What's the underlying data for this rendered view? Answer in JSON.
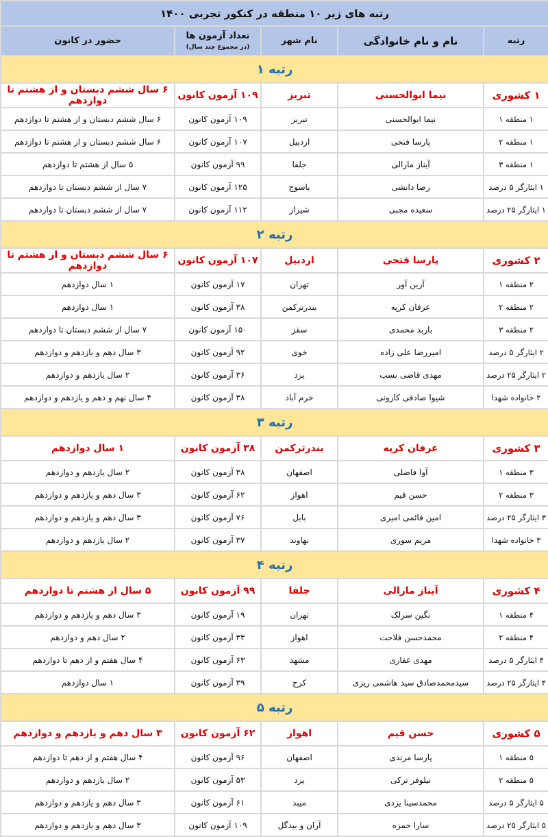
{
  "title": "رتبه های زیر ۱۰ منطقه در کنکور تجربی ۱۴۰۰",
  "headers": {
    "rank": "رتبه",
    "name": "نام و نام خانوادگی",
    "city": "نام شهر",
    "exams": "تعداد آزمون ها",
    "exams_sub": "(در مجموع چند سال)",
    "attendance": "حضور در کانون"
  },
  "colors": {
    "header_bg": "#b4c6e7",
    "section_bg": "#ffe699",
    "section_text": "#1f6fb4",
    "highlight": "#e00000"
  },
  "sections": [
    {
      "title": "رتبه ۱",
      "rows": [
        [
          "۱ کشوری",
          "نیما ابوالحسنی",
          "تبریز",
          "۱۰۹ آزمون کانون",
          "۶ سال ششم دبستان و از هشتم تا دوازدهم"
        ],
        [
          "۱ منطقه ۱",
          "نیما ابوالحسنی",
          "تبریز",
          "۱۰۹ آزمون کانون",
          "۶ سال ششم دبستان و از هشتم تا دوازدهم"
        ],
        [
          "۱ منطقه ۲",
          "پارسا فتحی",
          "اردبیل",
          "۱۰۷ آزمون کانون",
          "۶ سال ششم دبستان و از هشتم تا دوازدهم"
        ],
        [
          "۱ منطقه ۳",
          "آیناز مارالی",
          "جلفا",
          "۹۹ آزمون کانون",
          "۵ سال از هشتم تا دوازدهم"
        ],
        [
          "۱ ایثارگر ۵ درصد",
          "رضا دانشی",
          "یاسوج",
          "۱۲۵ آزمون کانون",
          "۷ سال از ششم دبستان تا دوازدهم"
        ],
        [
          "۱ ایثارگر ۲۵ درصد",
          "سعیده مجبی",
          "شیراز",
          "۱۱۲ آزمون کانون",
          "۷ سال از ششم دبستان تا دوازدهم"
        ]
      ]
    },
    {
      "title": "رتبه ۲",
      "rows": [
        [
          "۲ کشوری",
          "پارسا فتحی",
          "اردبیل",
          "۱۰۷ آزمون کانون",
          "۶ سال ششم دبستان و از هشتم تا دوازدهم"
        ],
        [
          "۲ منطقه ۱",
          "آرین آور",
          "تهران",
          "۱۷ آزمون کانون",
          "۱ سال دوازدهم"
        ],
        [
          "۲ منطقه ۲",
          "عرفان کرپه",
          "بندرترکمن",
          "۳۸ آزمون کانون",
          "۱ سال دوازدهم"
        ],
        [
          "۲ منطقه ۳",
          "باربد محمدی",
          "سقز",
          "۱۵۰ آزمون کانون",
          "۷ سال از ششم دبستان تا دوازدهم"
        ],
        [
          "۲ ایثارگر ۵ درصد",
          "امیررضا علی زاده",
          "خوی",
          "۹۲ آزمون کانون",
          "۳ سال دهم و یازدهم و دوازدهم"
        ],
        [
          "۲ ایثارگر ۲۵ درصد",
          "مهدی قاضی نسب",
          "یزد",
          "۳۶ آزمون کانون",
          "۲ سال یازدهم و دوازدهم"
        ],
        [
          "۲ خانواده شهدا",
          "شیوا صادقی کارونی",
          "خرم آباد",
          "۳۸ آزمون کانون",
          "۴ سال نهم و دهم و یازدهم و دوازدهم"
        ]
      ]
    },
    {
      "title": "رتبه ۳",
      "rows": [
        [
          "۳ کشوری",
          "عرفان کرپه",
          "بندرترکمن",
          "۳۸ آزمون کانون",
          "۱ سال دوازدهم"
        ],
        [
          "۳ منطقه ۱",
          "آوا فاضلی",
          "اصفهان",
          "۳۸ آزمون کانون",
          "۲ سال یازدهم و دوازدهم"
        ],
        [
          "۳ منطقه ۲",
          "حسن قیم",
          "اهواز",
          "۶۲ آزمون کانون",
          "۳ سال دهم و یازدهم و دوازدهم"
        ],
        [
          "۳ ایثارگر ۲۵ درصد",
          "امین قائمی امیری",
          "بابل",
          "۷۶ آزمون کانون",
          "۳ سال دهم و یازدهم و دوازدهم"
        ],
        [
          "۳ خانواده شهدا",
          "مریم سوری",
          "نهاوند",
          "۳۷ آزمون کانون",
          "۲ سال یازدهم و دوازدهم"
        ]
      ]
    },
    {
      "title": "رتبه ۴",
      "rows": [
        [
          "۴ کشوری",
          "آیناز مارالی",
          "جلفا",
          "۹۹ آزمون کانون",
          "۵ سال از هشتم تا دوازدهم"
        ],
        [
          "۴ منطقه ۱",
          "نگین سرلک",
          "تهران",
          "۱۹ آزمون کانون",
          "۳ سال دهم و یازدهم و دوازدهم"
        ],
        [
          "۴ منطقه ۲",
          "محمدحسن فلاحت",
          "اهواز",
          "۳۳ آزمون کانون",
          "۲ سال دهم و دوازدهم"
        ],
        [
          "۴ ایثارگر ۵ درصد",
          "مهدی غفاری",
          "مشهد",
          "۶۳ آزمون کانون",
          "۴ سال هفتم و از دهم تا دوازدهم"
        ],
        [
          "۴ ایثارگر ۲۵ درصد",
          "سیدمحمدصادق سید هاشمی ریزی",
          "کرج",
          "۳۹ آزمون کانون",
          "۱ سال دوازدهم"
        ]
      ]
    },
    {
      "title": "رتبه ۵",
      "rows": [
        [
          "۵ کشوری",
          "حسن قیم",
          "اهواز",
          "۶۲ آزمون کانون",
          "۳ سال دهم و یازدهم و دوازدهم"
        ],
        [
          "۵ منطقه ۱",
          "پارسا مرندی",
          "اصفهان",
          "۹۶ آزمون کانون",
          "۴ سال هفتم و از دهم تا دوازدهم"
        ],
        [
          "۵ منطقه ۲",
          "نیلوفر ترکی",
          "یزد",
          "۵۳ آزمون کانون",
          "۲ سال یازدهم و دوازدهم"
        ],
        [
          "۵ ایثارگر ۵ درصد",
          "محمدسینا یزدی",
          "میبد",
          "۶۱ آزمون کانون",
          "۳ سال دهم و یازدهم و دوازدهم"
        ],
        [
          "۵ ایثارگر ۲۵ درصد",
          "سارا حمزه",
          "آران و بیدگل",
          "۱۰۹ آزمون کانون",
          "۳ سال دهم و یازدهم و دوازدهم"
        ]
      ]
    }
  ]
}
